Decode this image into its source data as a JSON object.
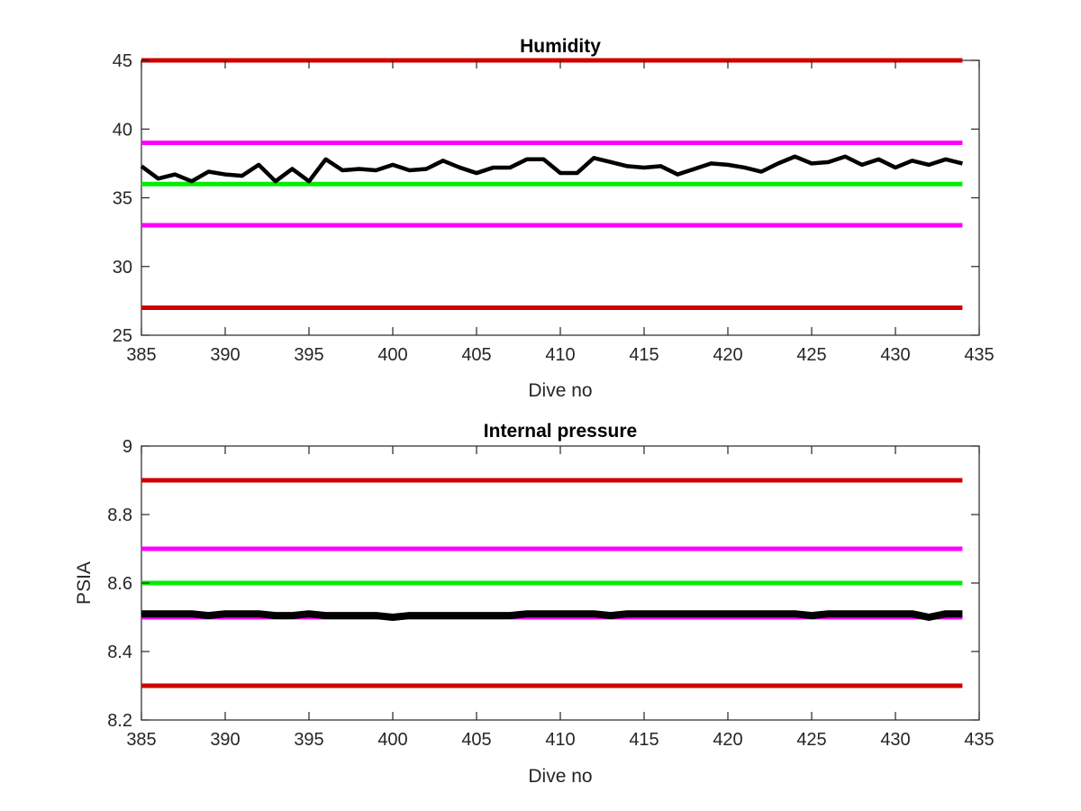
{
  "chart_data": [
    {
      "type": "line",
      "title": "Humidity",
      "xlabel": "Dive no",
      "ylabel": "",
      "xlim": [
        385,
        435
      ],
      "ylim": [
        25,
        45
      ],
      "xticks": [
        385,
        390,
        395,
        400,
        405,
        410,
        415,
        420,
        425,
        430,
        435
      ],
      "yticks": [
        25,
        30,
        35,
        40,
        45
      ],
      "grid": false,
      "x": [
        385,
        386,
        387,
        388,
        389,
        390,
        391,
        392,
        393,
        394,
        395,
        396,
        397,
        398,
        399,
        400,
        401,
        402,
        403,
        404,
        405,
        406,
        407,
        408,
        409,
        410,
        411,
        412,
        413,
        414,
        415,
        416,
        417,
        418,
        419,
        420,
        421,
        422,
        423,
        424,
        425,
        426,
        427,
        428,
        429,
        430,
        431,
        432,
        433,
        434
      ],
      "series": [
        {
          "color": "#000000",
          "values": [
            37.3,
            36.4,
            36.7,
            36.2,
            36.9,
            36.7,
            36.6,
            37.4,
            36.2,
            37.1,
            36.2,
            37.8,
            37.0,
            37.1,
            37.0,
            37.4,
            37.0,
            37.1,
            37.7,
            37.2,
            36.8,
            37.2,
            37.2,
            37.8,
            37.8,
            36.8,
            36.8,
            37.9,
            37.6,
            37.3,
            37.2,
            37.3,
            36.7,
            37.1,
            37.5,
            37.4,
            37.2,
            36.9,
            37.5,
            38.0,
            37.5,
            37.6,
            38.0,
            37.4,
            37.8,
            37.2,
            37.7,
            37.4,
            37.8,
            37.5
          ]
        }
      ],
      "reference_lines": [
        {
          "y": 45,
          "color": "#d00000"
        },
        {
          "y": 39,
          "color": "#ff00ff"
        },
        {
          "y": 36,
          "color": "#00ee00"
        },
        {
          "y": 33,
          "color": "#ff00ff"
        },
        {
          "y": 27,
          "color": "#d00000"
        }
      ]
    },
    {
      "type": "line",
      "title": "Internal pressure",
      "xlabel": "Dive no",
      "ylabel": "PSIA",
      "xlim": [
        385,
        435
      ],
      "ylim": [
        8.2,
        9
      ],
      "xticks": [
        385,
        390,
        395,
        400,
        405,
        410,
        415,
        420,
        425,
        430,
        435
      ],
      "yticks": [
        8.2,
        8.4,
        8.6,
        8.8,
        9
      ],
      "grid": false,
      "x": [
        385,
        386,
        387,
        388,
        389,
        390,
        391,
        392,
        393,
        394,
        395,
        396,
        397,
        398,
        399,
        400,
        401,
        402,
        403,
        404,
        405,
        406,
        407,
        408,
        409,
        410,
        411,
        412,
        413,
        414,
        415,
        416,
        417,
        418,
        419,
        420,
        421,
        422,
        423,
        424,
        425,
        426,
        427,
        428,
        429,
        430,
        431,
        432,
        433,
        434
      ],
      "series": [
        {
          "color": "#000000",
          "values": [
            8.51,
            8.51,
            8.51,
            8.51,
            8.505,
            8.51,
            8.51,
            8.51,
            8.505,
            8.505,
            8.51,
            8.505,
            8.505,
            8.505,
            8.505,
            8.5,
            8.505,
            8.505,
            8.505,
            8.505,
            8.505,
            8.505,
            8.505,
            8.51,
            8.51,
            8.51,
            8.51,
            8.51,
            8.505,
            8.51,
            8.51,
            8.51,
            8.51,
            8.51,
            8.51,
            8.51,
            8.51,
            8.51,
            8.51,
            8.51,
            8.505,
            8.51,
            8.51,
            8.51,
            8.51,
            8.51,
            8.51,
            8.5,
            8.51,
            8.51
          ]
        }
      ],
      "reference_lines": [
        {
          "y": 8.9,
          "color": "#d00000"
        },
        {
          "y": 8.7,
          "color": "#ff00ff"
        },
        {
          "y": 8.6,
          "color": "#00ee00"
        },
        {
          "y": 8.5,
          "color": "#ff00ff"
        },
        {
          "y": 8.3,
          "color": "#d00000"
        }
      ]
    }
  ]
}
